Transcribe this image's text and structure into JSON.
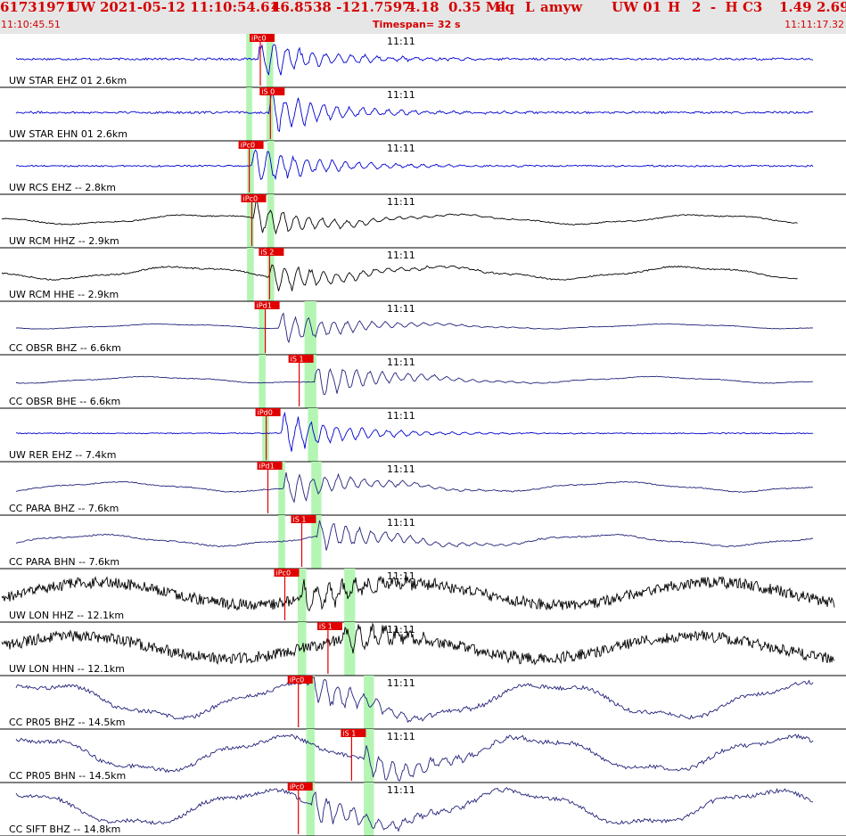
{
  "header": {
    "event_id": "61731971",
    "network": "UW",
    "datetime": "2021-05-12 11:10:54.61",
    "latlon": "46.8538 -121.7597",
    "depth_mag": "4.18  0.35 Ml",
    "type": "eq",
    "local": "L",
    "author": "amyw",
    "source": "UW 01",
    "quality": "H",
    "extra": "2  -  H C3",
    "rms": "1.49",
    "err": "2.69",
    "start_time": "11:10:45.51",
    "timespan": "Timespan=  32 s",
    "end_time": "11:11:17.32",
    "minute_label": "11:11"
  },
  "colors": {
    "pick": "#e00000",
    "window": "#b4f5b4",
    "blue": "#0000d0",
    "navy": "#23237a",
    "black": "#000000"
  },
  "traces": [
    {
      "label": "UW STAR EHZ 01 2.6km",
      "color": "blue",
      "amp": 4,
      "style": "hf",
      "onset": 0.305,
      "pick": "iPc0",
      "pickpos": 0.295,
      "win": [
        0.291,
        0.298
      ],
      "win2": [
        0.315,
        0.323
      ]
    },
    {
      "label": "UW STAR EHN 01 2.6km",
      "color": "blue",
      "amp": 4,
      "style": "hf",
      "onset": 0.318,
      "pick": "iS 0",
      "pickpos": 0.307,
      "win": [
        0.291,
        0.298
      ],
      "win2": [
        0.315,
        0.323
      ]
    },
    {
      "label": "UW RCS EHZ -- 2.8km",
      "color": "blue",
      "amp": 3,
      "style": "hf",
      "onset": 0.298,
      "pick": "iPc0",
      "pickpos": 0.282,
      "win": [
        0.292,
        0.3
      ],
      "win2": [
        0.316,
        0.324
      ]
    },
    {
      "label": "UW RCM HHZ -- 2.9km",
      "color": "black",
      "amp": 6,
      "style": "lp",
      "onset": 0.3,
      "pick": "iPc0",
      "pickpos": 0.285,
      "win": [
        0.292,
        0.3
      ],
      "win2": [
        0.316,
        0.324
      ]
    },
    {
      "label": "UW RCM HHE -- 2.9km",
      "color": "black",
      "amp": 8,
      "style": "lp",
      "onset": 0.318,
      "pick": "iS 2",
      "pickpos": 0.306,
      "win": [
        0.292,
        0.3
      ],
      "win2": [
        0.316,
        0.324
      ]
    },
    {
      "label": "CC OBSR BHZ -- 6.6km",
      "color": "navy",
      "amp": 3,
      "style": "lp",
      "onset": 0.33,
      "pick": "iPd1",
      "pickpos": 0.301,
      "win": [
        0.306,
        0.314
      ],
      "win2": [
        0.36,
        0.374
      ]
    },
    {
      "label": "CC OBSR BHE -- 6.6km",
      "color": "navy",
      "amp": 4,
      "style": "lp",
      "onset": 0.372,
      "pick": "iS 1",
      "pickpos": 0.341,
      "win": [
        0.306,
        0.314
      ],
      "win2": [
        0.36,
        0.374
      ]
    },
    {
      "label": "UW RER EHZ -- 7.4km",
      "color": "blue",
      "amp": 2,
      "style": "hf",
      "onset": 0.333,
      "pick": "iPd0",
      "pickpos": 0.302,
      "win": [
        0.31,
        0.318
      ],
      "win2": [
        0.364,
        0.376
      ]
    },
    {
      "label": "CC PARA BHZ -- 7.6km",
      "color": "navy",
      "amp": 6,
      "style": "lp",
      "onset": 0.335,
      "pick": "iPd1",
      "pickpos": 0.304,
      "win": [
        0.329,
        0.337
      ],
      "win2": [
        0.368,
        0.38
      ]
    },
    {
      "label": "CC PARA BHN -- 7.6km",
      "color": "navy",
      "amp": 7,
      "style": "lp",
      "onset": 0.375,
      "pick": "iS 1",
      "pickpos": 0.344,
      "win": [
        0.329,
        0.337
      ],
      "win2": [
        0.368,
        0.38
      ]
    },
    {
      "label": "UW LON HHZ -- 12.1km",
      "color": "black",
      "amp": 14,
      "style": "noisy",
      "onset": 0.355,
      "pick": "iPc0",
      "pickpos": 0.324,
      "win": [
        0.352,
        0.362
      ],
      "win2": [
        0.407,
        0.42
      ]
    },
    {
      "label": "UW LON HHN -- 12.1km",
      "color": "black",
      "amp": 14,
      "style": "noisy",
      "onset": 0.405,
      "pick": "iS 1",
      "pickpos": 0.375,
      "win": [
        0.352,
        0.362
      ],
      "win2": [
        0.407,
        0.42
      ]
    },
    {
      "label": "CC PR05 BHZ -- 14.5km",
      "color": "navy",
      "amp": 22,
      "style": "lp",
      "onset": 0.365,
      "pick": "iPc0",
      "pickpos": 0.34,
      "win": [
        0.362,
        0.372
      ],
      "win2": [
        0.43,
        0.442
      ]
    },
    {
      "label": "CC PR05 BHN -- 14.5km",
      "color": "navy",
      "amp": 22,
      "style": "lp",
      "onset": 0.43,
      "pick": "iS 1",
      "pickpos": 0.403,
      "win": [
        0.362,
        0.372
      ],
      "win2": [
        0.43,
        0.442
      ]
    },
    {
      "label": "CC SIFT BHZ -- 14.8km",
      "color": "navy",
      "amp": 22,
      "style": "lp",
      "onset": 0.368,
      "pick": "iPc0",
      "pickpos": 0.34,
      "win": [
        0.362,
        0.372
      ],
      "win2": [
        0.43,
        0.442
      ]
    }
  ]
}
